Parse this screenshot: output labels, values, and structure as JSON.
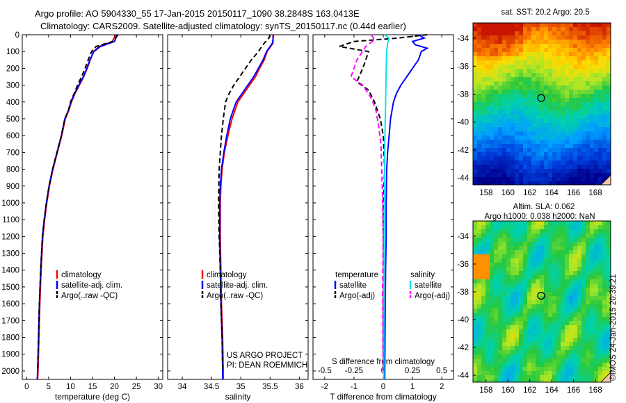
{
  "header": {
    "title_line1": "Argo profile: AO 5904330_55 17-Jan-2015 20150117_1090 38.2848S 163.0413E",
    "title_line2": "Climatology: CARS2009. Satellite-adjusted climatology: synTS_20150117.nc (0.44d earlier)"
  },
  "footer": {
    "project_line1": "US ARGO PROJECT",
    "project_line2": "PI: DEAN ROEMMICH",
    "imos_stamp": "©IMOS 24-Jan-2015 20:39:21"
  },
  "maps": {
    "sst_title": "sat. SST: 20.2  Argo: 20.5",
    "sla_title_line1": "Altim. SLA: 0.062",
    "sla_title_line2": "Argo h1000: 0.038 h2000: NaN",
    "lat_ticks": [
      "-34",
      "-36",
      "-38",
      "-40",
      "-42",
      "-44"
    ],
    "lon_ticks": [
      "158",
      "160",
      "162",
      "164",
      "166",
      "168"
    ],
    "float_position": {
      "lon": 163.04,
      "lat": -38.28
    }
  },
  "chart_data": [
    {
      "type": "line",
      "panel": "temperature",
      "xlabel": "temperature (deg C)",
      "ylabel": "",
      "xlim": [
        -1,
        31
      ],
      "ylim": [
        2050,
        0
      ],
      "x_ticks": [
        0,
        5,
        10,
        15,
        20,
        25,
        30
      ],
      "y_ticks": [
        0,
        100,
        200,
        300,
        400,
        500,
        600,
        700,
        800,
        900,
        1000,
        1100,
        1200,
        1300,
        1400,
        1500,
        1600,
        1700,
        1800,
        1900,
        2000
      ],
      "legend": [
        "climatology",
        "satellite-adj. clim.",
        "Argo(..raw -QC)"
      ],
      "series": [
        {
          "name": "climatology",
          "color": "#ff0000",
          "style": "solid",
          "x": [
            20.3,
            19.5,
            16.5,
            15.2,
            14.5,
            13.8,
            13.0,
            12.0,
            11.0,
            10.2,
            9.6,
            8.8,
            8.0,
            7.0,
            6.0,
            5.2,
            4.6,
            4.1,
            3.7,
            3.3,
            3.0,
            2.8,
            2.6,
            2.5
          ],
          "y": [
            0,
            40,
            70,
            100,
            150,
            200,
            250,
            300,
            350,
            400,
            450,
            500,
            600,
            700,
            800,
            900,
            1000,
            1100,
            1200,
            1400,
            1600,
            1800,
            2000,
            2050
          ]
        },
        {
          "name": "satellite-adj. clim.",
          "color": "#0000ff",
          "style": "solid",
          "x": [
            20.6,
            20.0,
            16.8,
            15.3,
            14.4,
            13.7,
            12.9,
            11.9,
            10.9,
            10.1,
            9.5,
            8.7,
            7.9,
            6.9,
            5.9,
            5.1,
            4.5,
            4.0,
            3.6,
            3.2,
            2.9,
            2.7,
            2.5,
            2.4
          ],
          "y": [
            0,
            40,
            70,
            100,
            150,
            200,
            250,
            300,
            350,
            400,
            450,
            500,
            600,
            700,
            800,
            900,
            1000,
            1100,
            1200,
            1400,
            1600,
            1800,
            2000,
            2050
          ]
        },
        {
          "name": "Argo(..raw -QC)",
          "color": "#000000",
          "style": "dash",
          "x": [
            20.8,
            19.6,
            15.8,
            14.8,
            14.0,
            13.3,
            12.5,
            11.6,
            10.8,
            10.0,
            9.5,
            8.7,
            7.9,
            6.9,
            5.9,
            5.1,
            4.5,
            4.0,
            3.6,
            3.2,
            2.9,
            2.7,
            2.5
          ],
          "y": [
            0,
            40,
            70,
            100,
            150,
            200,
            250,
            300,
            350,
            400,
            450,
            500,
            600,
            700,
            800,
            900,
            1000,
            1100,
            1200,
            1400,
            1600,
            1800,
            2000
          ]
        }
      ]
    },
    {
      "type": "line",
      "panel": "salinity",
      "xlabel": "salinity",
      "ylabel": "",
      "xlim": [
        33.75,
        36.15
      ],
      "ylim": [
        2050,
        0
      ],
      "x_ticks": [
        34,
        34.5,
        35,
        35.5,
        36
      ],
      "x_tick_labels": [
        "34",
        "34.5",
        "35",
        "35.5",
        "36"
      ],
      "legend": [
        "climatology",
        "satellite-adj. clim.",
        "Argo(..raw -QC)"
      ],
      "series": [
        {
          "name": "climatology",
          "color": "#ff0000",
          "style": "solid",
          "x": [
            35.55,
            35.55,
            35.45,
            35.4,
            35.32,
            35.25,
            35.15,
            35.05,
            34.95,
            34.85,
            34.78,
            34.72,
            34.68,
            34.66,
            34.65,
            34.65,
            34.66,
            34.67,
            34.69,
            34.7,
            34.7
          ],
          "y": [
            0,
            50,
            100,
            150,
            200,
            250,
            300,
            350,
            400,
            500,
            600,
            700,
            800,
            900,
            1000,
            1200,
            1400,
            1600,
            1800,
            2000,
            2050
          ]
        },
        {
          "name": "satellite-adj. clim.",
          "color": "#0000ff",
          "style": "solid",
          "x": [
            35.56,
            35.54,
            35.44,
            35.38,
            35.3,
            35.22,
            35.12,
            35.02,
            34.92,
            34.82,
            34.76,
            34.71,
            34.67,
            34.65,
            34.64,
            34.64,
            34.65,
            34.66,
            34.68,
            34.69,
            34.69
          ],
          "y": [
            0,
            50,
            100,
            150,
            200,
            250,
            300,
            350,
            400,
            500,
            600,
            700,
            800,
            900,
            1000,
            1200,
            1400,
            1600,
            1800,
            2000,
            2050
          ]
        },
        {
          "name": "Argo(..raw -QC)",
          "color": "#000000",
          "style": "dash",
          "x": [
            35.5,
            35.48,
            35.4,
            35.3,
            35.18,
            35.08,
            34.98,
            34.88,
            34.8,
            34.74,
            34.7,
            34.67,
            34.65,
            34.63,
            34.62,
            34.63,
            34.65,
            34.66,
            34.68,
            34.69
          ],
          "y": [
            0,
            20,
            50,
            100,
            150,
            200,
            250,
            300,
            350,
            400,
            500,
            600,
            700,
            800,
            1000,
            1200,
            1400,
            1600,
            1800,
            2000
          ]
        }
      ]
    },
    {
      "type": "line",
      "panel": "difference",
      "xlabel": "T difference from climatology",
      "top_xlabel": "S difference from climatology",
      "xlim": [
        -2.4,
        2.4
      ],
      "ylim": [
        2050,
        0
      ],
      "x_ticks": [
        -2,
        -1,
        0,
        1,
        2
      ],
      "x_tick_labels": [
        "-2",
        "-1",
        "0",
        "1",
        "2"
      ],
      "top_ticks": [
        -0.5,
        -0.25,
        0,
        0.25,
        0.5
      ],
      "top_tick_labels": [
        "-0.5",
        "-0.25",
        "0",
        "0.25",
        "0.5"
      ],
      "legend_groups": [
        {
          "heading": "temperature",
          "items": [
            "satellite",
            "Argo(-adj)"
          ]
        },
        {
          "heading": "salinity",
          "items": [
            "satellite",
            "Argo(-adj)"
          ]
        }
      ],
      "series": [
        {
          "name": "temperature satellite",
          "color": "#0000ff",
          "style": "solid",
          "x": [
            1.2,
            1.4,
            1.0,
            1.1,
            1.5,
            1.3,
            1.2,
            1.0,
            0.8,
            0.6,
            0.45,
            0.35,
            0.3,
            0.25,
            0.2,
            0.15,
            0.12,
            0.1,
            0.1,
            0.08,
            0.07,
            0.06,
            0.05
          ],
          "y": [
            0,
            20,
            40,
            60,
            80,
            100,
            150,
            200,
            250,
            300,
            350,
            400,
            450,
            500,
            600,
            700,
            800,
            1000,
            1200,
            1400,
            1600,
            1800,
            2050
          ]
        },
        {
          "name": "temperature Argo(-adj)",
          "color": "#000000",
          "style": "dash",
          "x": [
            1.5,
            0.5,
            -1.0,
            -1.5,
            -0.5,
            -0.6,
            -0.7,
            -0.9,
            -0.5,
            -0.3,
            -0.2,
            -0.1,
            0.0,
            0.05,
            0.0,
            0.0,
            0.02,
            0.0,
            0.0,
            0.0
          ],
          "y": [
            0,
            20,
            40,
            70,
            100,
            150,
            200,
            280,
            330,
            400,
            450,
            500,
            600,
            800,
            1000,
            1200,
            1400,
            1600,
            1800,
            2000
          ]
        },
        {
          "name": "salinity satellite",
          "color": "#00e5ee",
          "style": "solid",
          "x": [
            0.05,
            0.2,
            0.15,
            0.12,
            0.1,
            0.09,
            0.08,
            0.07,
            0.06,
            0.05,
            0.05,
            0.04,
            0.03,
            0.02,
            0.02,
            0.02
          ],
          "y": [
            0,
            20,
            50,
            100,
            200,
            300,
            400,
            500,
            600,
            700,
            800,
            1000,
            1200,
            1500,
            1800,
            2050
          ]
        },
        {
          "name": "salinity Argo(-adj)",
          "color": "#ff00ff",
          "style": "dash",
          "x": [
            -0.4,
            -0.3,
            -0.6,
            -0.9,
            -1.1,
            -0.7,
            -0.4,
            -0.25,
            -0.15,
            -0.08,
            -0.05,
            -0.02,
            0.0,
            -0.02,
            -0.01,
            0.0
          ],
          "y": [
            0,
            30,
            70,
            150,
            250,
            300,
            380,
            450,
            550,
            650,
            800,
            1000,
            1200,
            1500,
            1800,
            2000
          ]
        }
      ]
    }
  ]
}
